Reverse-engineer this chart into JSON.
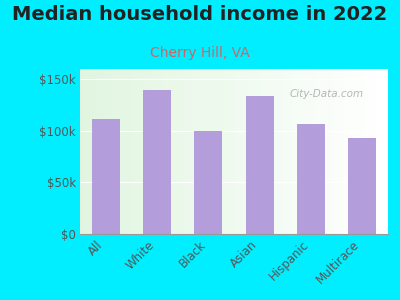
{
  "title": "Median household income in 2022",
  "subtitle": "Cherry Hill, VA",
  "categories": [
    "All",
    "White",
    "Black",
    "Asian",
    "Hispanic",
    "Multirace"
  ],
  "values": [
    112000,
    140000,
    100000,
    134000,
    107000,
    93000
  ],
  "bar_color": "#b39ddb",
  "background_color": "#00eeff",
  "title_fontsize": 14,
  "title_color": "#222222",
  "subtitle_fontsize": 10,
  "subtitle_color": "#cc6666",
  "ytick_color": "#555555",
  "xtick_color": "#555555",
  "ylim": [
    0,
    160000
  ],
  "yticks": [
    0,
    50000,
    100000,
    150000
  ],
  "ytick_labels": [
    "$0",
    "$50k",
    "$100k",
    "$150k"
  ],
  "watermark": "City-Data.com",
  "watermark_color": "#aaaaaa"
}
